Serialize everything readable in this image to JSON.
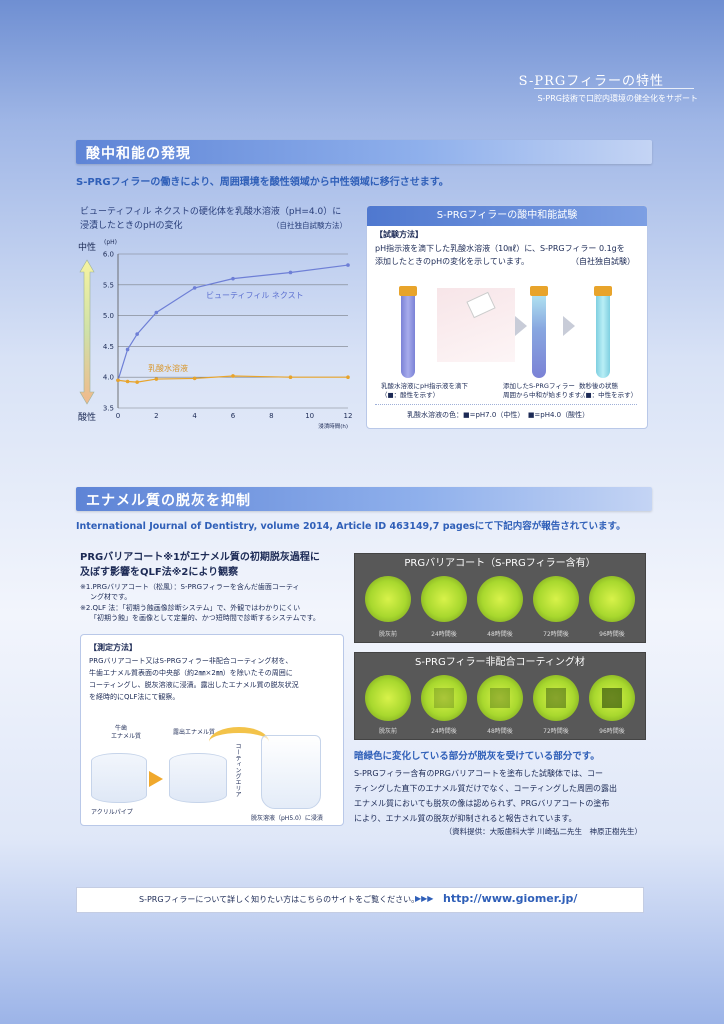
{
  "header": {
    "title": "S-PRGフィラーの特性",
    "subtitle": "S-PRG技術で口腔内環境の健全化をサポート"
  },
  "sec1": {
    "title": "酸中和能の発現",
    "lead": "S-PRGフィラーの働きにより、周囲環境を酸性領域から中性領域に移行させます。",
    "chart_caption1": "ビューティフィル ネクストの硬化体を乳酸水溶液（pH=4.0）に",
    "chart_caption2": "浸漬したときのpHの変化",
    "chart_source": "（自社独自試験方法）",
    "neutral": "中性",
    "acidic": "酸性"
  },
  "chart_data": {
    "type": "line",
    "ylabel": "(pH)",
    "xlabel": "浸漬時間(h)",
    "xlim": [
      0,
      12
    ],
    "ylim": [
      3.5,
      6.0
    ],
    "xticks": [
      0,
      2,
      4,
      6,
      8,
      10,
      12
    ],
    "yticks": [
      "3.5",
      "4.0",
      "4.5",
      "5.0",
      "5.5",
      "6.0"
    ],
    "series": [
      {
        "name": "ビューティフィル ネクスト",
        "color": "#6e7fd6",
        "x": [
          0,
          0.5,
          1,
          2,
          4,
          6,
          9,
          12
        ],
        "y": [
          3.95,
          4.45,
          4.7,
          5.05,
          5.45,
          5.6,
          5.7,
          5.82
        ]
      },
      {
        "name": "乳酸水溶液",
        "color": "#e8a42b",
        "x": [
          0,
          0.5,
          1,
          2,
          4,
          6,
          9,
          12
        ],
        "y": [
          3.95,
          3.93,
          3.92,
          3.97,
          3.98,
          4.02,
          4.0,
          4.0
        ]
      }
    ]
  },
  "test": {
    "title": "S-PRGフィラーの酸中和能試験",
    "method_label": "【試験方法】",
    "method_l1": "pH指示液を滴下した乳酸水溶液（10㎖）に、S-PRGフィラー 0.1gを",
    "method_l2": "添加したときのpHの変化を示しています。",
    "source": "（自社独自試験）",
    "step1_l1": "乳酸水溶液にpH指示液を滴下",
    "step1_l2": "（■：酸性を示す）",
    "step2_l1": "添加したS-PRGフィラー",
    "step2_l2": "周囲から中和が始まります。",
    "step3_l1": "数秒後の状態",
    "step3_l2": "（■：中性を示す）",
    "legend": "乳酸水溶液の色：■=pH7.0（中性）　■=pH4.0（酸性）"
  },
  "sec2": {
    "title": "エナメル質の脱灰を抑制",
    "lead": "International Journal of Dentistry, volume 2014, Article ID 463149,7 pagesにて下記内容が報告されています。",
    "h_l1": "PRGバリアコート※1がエナメル質の初期脱灰過程に",
    "h_l2": "及ぼす影響をQLF法※2により観察",
    "note1_l1": "※1.PRGバリアコート（松風）：S-PRGフィラーを含んだ歯面コーティ",
    "note1_l2": "ング材です。",
    "note2_l1": "※2.QLF 法：「初期う蝕画像診断システム」で、外観ではわかりにくい",
    "note2_l2": "「初期う蝕」を画像として定量的、かつ短時間で診断するシステムです。",
    "meas_label": "【測定方法】",
    "meas_l1": "PRGバリアコート又はS-PRGフィラー非配合コーティング材を、",
    "meas_l2": "牛歯エナメル質表面の中央部（約2㎜×2㎜）を除いたその周囲に",
    "meas_l3": "コーティングし、脱灰溶液に浸漬。露出したエナメル質の脱灰状況",
    "meas_l4": "を経時的にQLF法にて観察。",
    "lbl_enamel1": "牛歯",
    "lbl_enamel2": "エナメル質",
    "lbl_exposed": "露出エナメル質",
    "lbl_coating": "コーティングエリア",
    "lbl_acrylic": "アクリルパイプ",
    "lbl_solution": "脱灰溶液（pH5.0）に浸漬",
    "panel1_title": "PRGバリアコート（S-PRGフィラー含有）",
    "panel2_title": "S-PRGフィラー非配合コーティング材",
    "times": [
      "脱灰前",
      "24時間後",
      "48時間後",
      "72時間後",
      "96時間後"
    ],
    "res_head": "暗緑色に変化している部分が脱灰を受けている部分です。",
    "res_l1": "S-PRGフィラー含有のPRGバリアコートを塗布した試験体では、コー",
    "res_l2": "ティングした直下のエナメル質だけでなく、コーティングした周囲の露出",
    "res_l3": "エナメル質においても脱灰の像は認められず、PRGバリアコートの塗布",
    "res_l4": "により、エナメル質の脱灰が抑制されると報告されています。",
    "res_source": "（資料提供：大阪歯科大学 川崎弘二先生　神原正樹先生）"
  },
  "footer": {
    "text": "S-PRGフィラーについて詳しく知りたい方はこちらのサイトをご覧ください。",
    "arrows": "▶▶▶",
    "url": "http://www.giomer.jp/"
  }
}
